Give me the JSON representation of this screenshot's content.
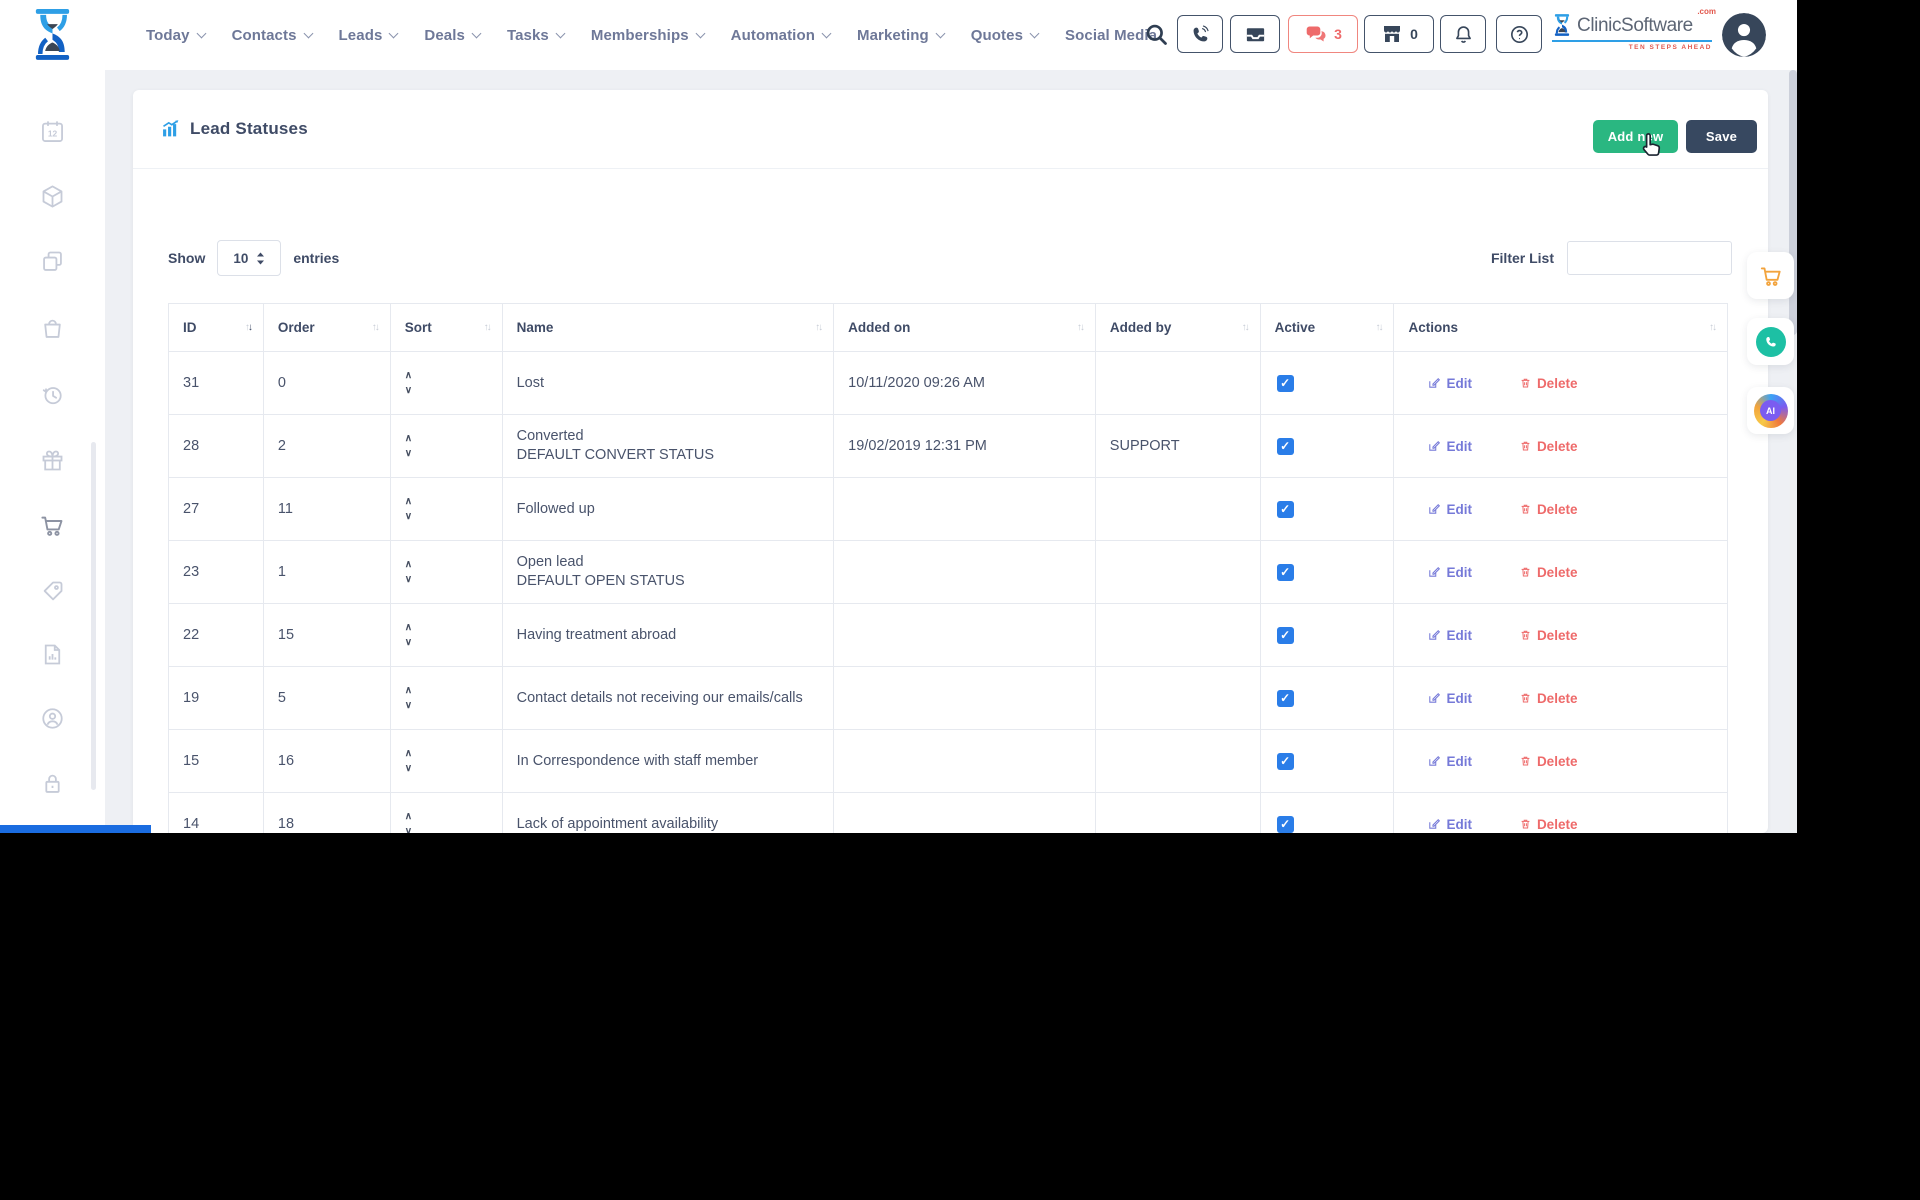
{
  "navbar": {
    "menu": [
      {
        "label": "Today",
        "chevron": true
      },
      {
        "label": "Contacts",
        "chevron": true
      },
      {
        "label": "Leads",
        "chevron": true
      },
      {
        "label": "Deals",
        "chevron": true
      },
      {
        "label": "Tasks",
        "chevron": true
      },
      {
        "label": "Memberships",
        "chevron": true
      },
      {
        "label": "Automation",
        "chevron": true
      },
      {
        "label": "Marketing",
        "chevron": true
      },
      {
        "label": "Quotes",
        "chevron": true
      },
      {
        "label": "Social Media",
        "chevron": false
      }
    ],
    "chat_count": "3",
    "store_count": "0",
    "brand": {
      "name": "ClinicSoftware",
      "tld": ".com",
      "tagline": "TEN STEPS AHEAD"
    }
  },
  "sidebar": {
    "items": [
      {
        "icon": "calendar-icon",
        "active": false
      },
      {
        "icon": "cube-icon",
        "active": false
      },
      {
        "icon": "copy-icon",
        "active": false
      },
      {
        "icon": "bag-icon",
        "active": false
      },
      {
        "icon": "history-icon",
        "active": false
      },
      {
        "icon": "gift-icon",
        "active": false
      },
      {
        "icon": "cart-icon",
        "active": true
      },
      {
        "icon": "tag-icon",
        "active": false
      },
      {
        "icon": "report-icon",
        "active": false
      },
      {
        "icon": "account-icon",
        "active": false
      },
      {
        "icon": "lock-icon",
        "active": false
      }
    ]
  },
  "page": {
    "title": "Lead Statuses",
    "add_new_label": "Add new",
    "save_label": "Save",
    "show_label": "Show",
    "entries_label": "entries",
    "page_size": "10",
    "filter_label": "Filter List",
    "filter_value": ""
  },
  "table": {
    "columns": [
      "ID",
      "Order",
      "Sort",
      "Name",
      "Added on",
      "Added by",
      "Active",
      "Actions"
    ],
    "sorted_column": "ID",
    "edit_label": "Edit",
    "delete_label": "Delete",
    "rows": [
      {
        "id": "31",
        "order": "0",
        "name": "Lost",
        "name_sub": "",
        "added_on": "10/11/2020 09:26 AM",
        "added_by": "",
        "active": true
      },
      {
        "id": "28",
        "order": "2",
        "name": "Converted",
        "name_sub": "DEFAULT CONVERT STATUS",
        "added_on": "19/02/2019 12:31 PM",
        "added_by": "SUPPORT",
        "active": true
      },
      {
        "id": "27",
        "order": "11",
        "name": "Followed up",
        "name_sub": "",
        "added_on": "",
        "added_by": "",
        "active": true
      },
      {
        "id": "23",
        "order": "1",
        "name": "Open lead",
        "name_sub": "DEFAULT OPEN STATUS",
        "added_on": "",
        "added_by": "",
        "active": true
      },
      {
        "id": "22",
        "order": "15",
        "name": "Having treatment abroad",
        "name_sub": "",
        "added_on": "",
        "added_by": "",
        "active": true
      },
      {
        "id": "19",
        "order": "5",
        "name": "Contact details not receiving our emails/calls",
        "name_sub": "",
        "added_on": "",
        "added_by": "",
        "active": true
      },
      {
        "id": "15",
        "order": "16",
        "name": "In Correspondence with staff member",
        "name_sub": "",
        "added_on": "",
        "added_by": "",
        "active": true
      },
      {
        "id": "14",
        "order": "18",
        "name": "Lack of appointment availability",
        "name_sub": "",
        "added_on": "",
        "added_by": "",
        "active": true
      }
    ]
  },
  "colors": {
    "accent_green": "#2ab781",
    "accent_dark": "#374860",
    "accent_red": "#ee6a6a",
    "accent_blue": "#2e9fe6",
    "checkbox_blue": "#2a7de8",
    "edit_purple": "#7579d8"
  }
}
